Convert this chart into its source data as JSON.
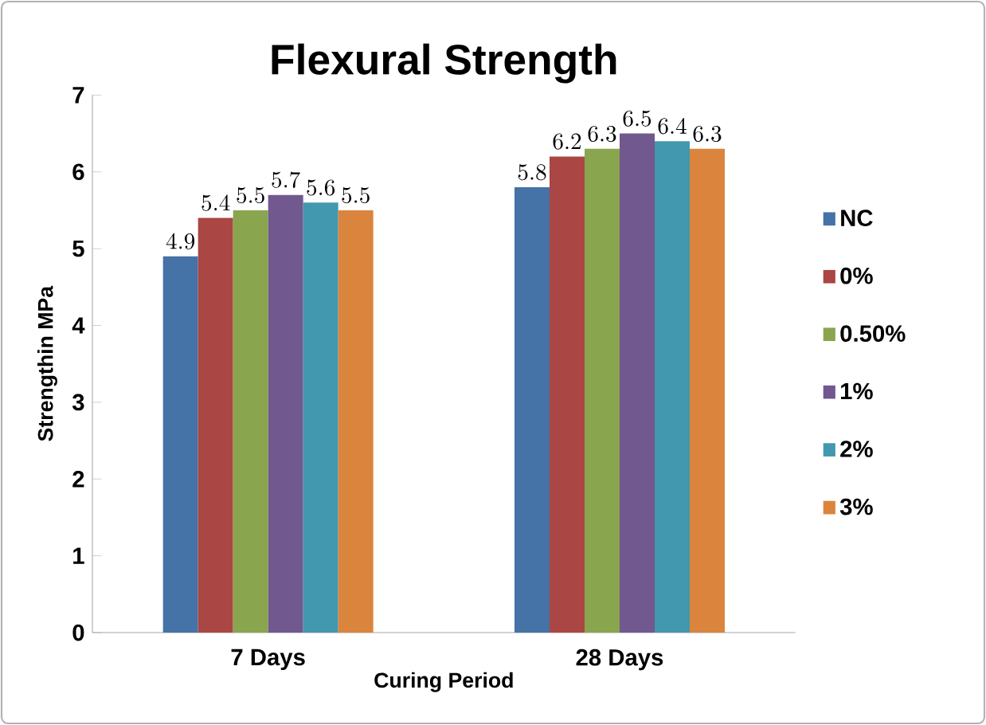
{
  "chart_data": {
    "type": "bar",
    "title": "Flexural Strength",
    "xlabel": "Curing Period",
    "ylabel": "Strengthin MPa",
    "categories": [
      "7 Days",
      "28 Days"
    ],
    "series": [
      {
        "name": "NC",
        "color": "#4572a7",
        "values": [
          4.9,
          5.8
        ]
      },
      {
        "name": "0%",
        "color": "#aa4643",
        "values": [
          5.4,
          6.2
        ]
      },
      {
        "name": "0.50%",
        "color": "#89a54e",
        "values": [
          5.5,
          6.3
        ]
      },
      {
        "name": "1%",
        "color": "#71588f",
        "values": [
          5.7,
          6.5
        ]
      },
      {
        "name": "2%",
        "color": "#4198af",
        "values": [
          5.6,
          6.4
        ]
      },
      {
        "name": "3%",
        "color": "#db843d",
        "values": [
          5.5,
          6.3
        ]
      }
    ],
    "ylim": [
      0,
      7
    ],
    "yticks": [
      0,
      1,
      2,
      3,
      4,
      5,
      6,
      7
    ],
    "data_labels": true,
    "legend": "right",
    "grid": false
  }
}
